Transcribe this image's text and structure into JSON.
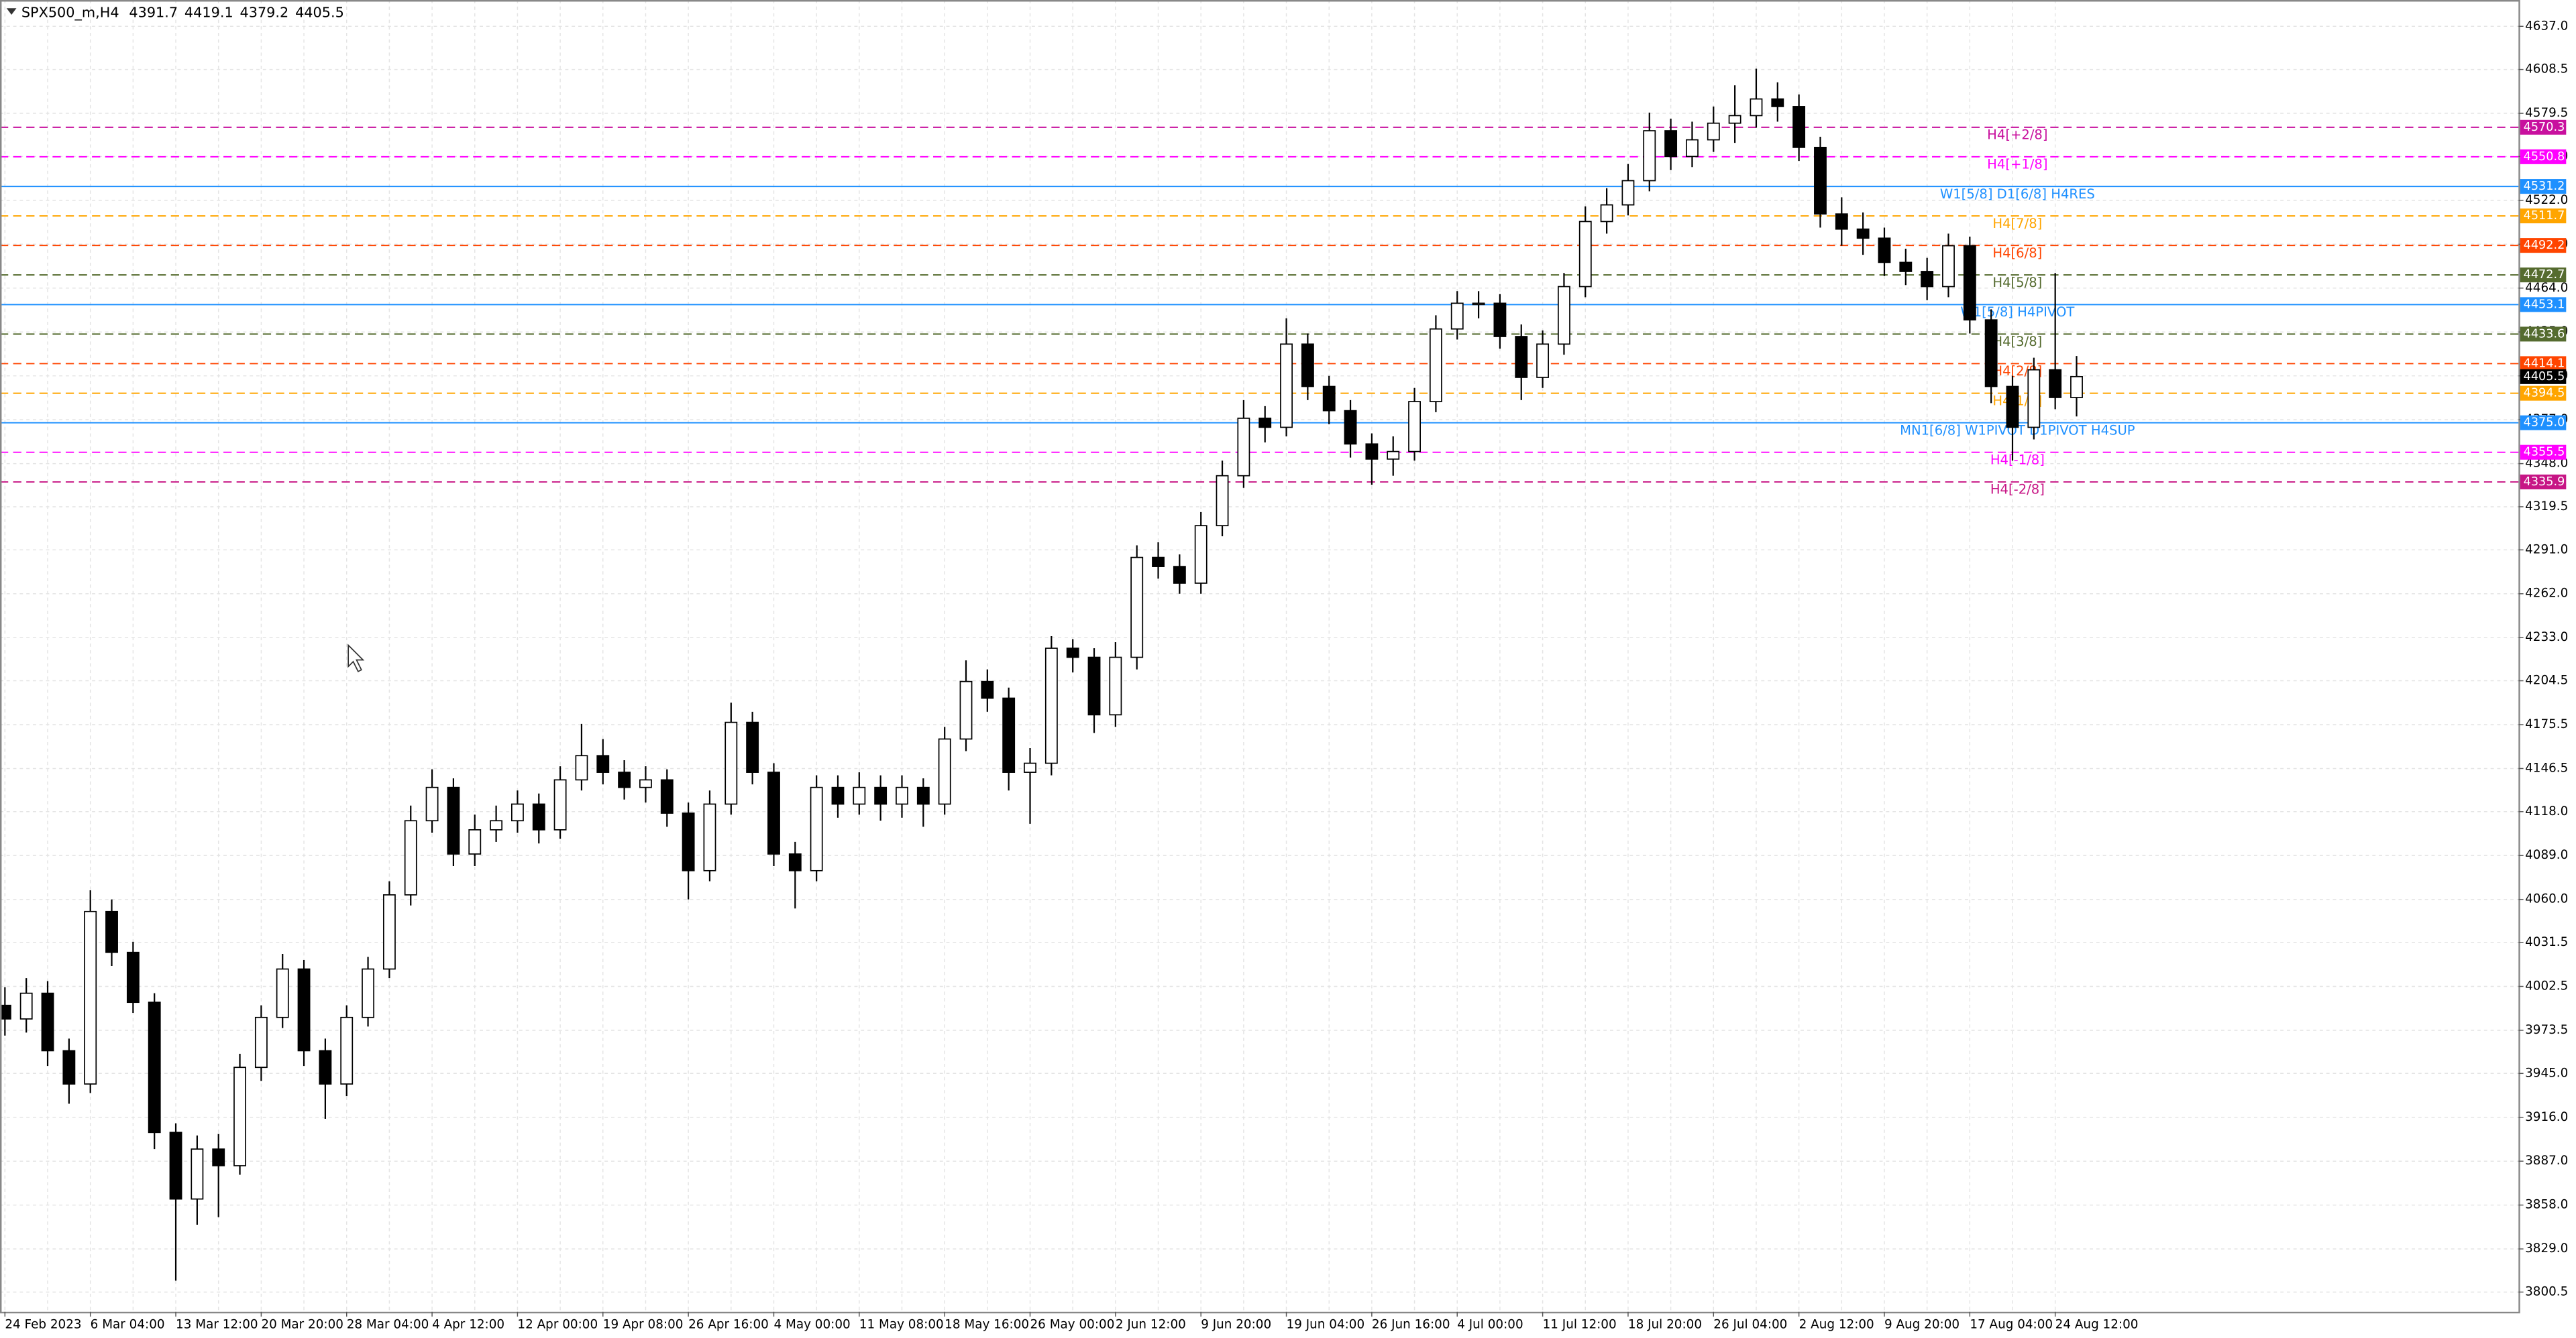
{
  "chart_data": {
    "type": "candlestick",
    "title": "SPX500_m,H4",
    "categories": [
      "24 Feb 2023",
      null,
      null,
      null,
      "6 Mar 04:00",
      null,
      null,
      null,
      "13 Mar 12:00",
      null,
      null,
      null,
      "20 Mar 20:00",
      null,
      null,
      null,
      "28 Mar 04:00",
      null,
      null,
      null,
      "4 Apr 12:00",
      null,
      null,
      null,
      "12 Apr 00:00",
      null,
      null,
      null,
      "19 Apr 08:00",
      null,
      null,
      null,
      "26 Apr 16:00",
      null,
      null,
      null,
      "4 May 00:00",
      null,
      null,
      null,
      "11 May 08:00",
      null,
      null,
      null,
      "18 May 16:00",
      null,
      null,
      null,
      "26 May 00:00",
      null,
      null,
      null,
      "2 Jun 12:00",
      null,
      null,
      null,
      "9 Jun 20:00",
      null,
      null,
      null,
      "19 Jun 04:00",
      null,
      null,
      null,
      "26 Jun 16:00",
      null,
      null,
      null,
      "4 Jul 00:00",
      null,
      null,
      null,
      "11 Jul 12:00",
      null,
      null,
      null,
      "18 Jul 20:00",
      null,
      null,
      null,
      "26 Jul 04:00",
      null,
      null,
      null,
      "2 Aug 12:00",
      null,
      null,
      null,
      "9 Aug 20:00",
      null,
      null,
      null,
      "17 Aug 04:00",
      null,
      null,
      null,
      "24 Aug 12:00",
      null
    ],
    "open": [
      3990,
      3981,
      3998,
      3960,
      3938,
      4052,
      4025,
      3992,
      3906,
      3862,
      3895,
      3884,
      3949,
      3982,
      4014,
      3960,
      3938,
      3982,
      4014,
      4063,
      4112,
      4134,
      4090,
      4106,
      4112,
      4123,
      4106,
      4139,
      4155,
      4144,
      4134,
      4139,
      4117,
      4079,
      4123,
      4177,
      4144,
      4090,
      4079,
      4134,
      4123,
      4134,
      4123,
      4134,
      4123,
      4166,
      4204,
      4193,
      4144,
      4150,
      4226,
      4220,
      4182,
      4220,
      4286,
      4280,
      4269,
      4307,
      4340,
      4378,
      4372,
      4427,
      4399,
      4383,
      4361,
      4351,
      4356,
      4389,
      4437,
      4454,
      4454,
      4432,
      4405,
      4427,
      4465,
      4508,
      4519,
      4535,
      4568,
      4551,
      4562,
      4573,
      4578,
      4589,
      4584,
      4557,
      4513,
      4503,
      4497,
      4481,
      4475,
      4465,
      4492,
      4443,
      4399,
      4372,
      4410,
      4391.7
    ],
    "high": [
      4002,
      4008,
      4006,
      3968,
      4066,
      4060,
      4032,
      3998,
      3912,
      3904,
      3905,
      3958,
      3990,
      4024,
      4020,
      3968,
      3990,
      4022,
      4072,
      4122,
      4146,
      4140,
      4116,
      4122,
      4132,
      4130,
      4148,
      4176,
      4166,
      4152,
      4148,
      4146,
      4124,
      4132,
      4190,
      4184,
      4150,
      4098,
      4142,
      4142,
      4144,
      4142,
      4142,
      4140,
      4174,
      4218,
      4212,
      4200,
      4160,
      4234,
      4232,
      4226,
      4230,
      4294,
      4296,
      4288,
      4316,
      4350,
      4390,
      4386,
      4444,
      4434,
      4406,
      4390,
      4368,
      4366,
      4398,
      4446,
      4462,
      4462,
      4460,
      4440,
      4436,
      4474,
      4518,
      4530,
      4546,
      4580,
      4576,
      4574,
      4584,
      4598,
      4609,
      4600,
      4592,
      4564,
      4524,
      4514,
      4504,
      4490,
      4484,
      4500,
      4498,
      4450,
      4406,
      4418,
      4474,
      4419.1
    ],
    "low": [
      3970,
      3972,
      3950,
      3925,
      3932,
      4016,
      3985,
      3895,
      3808,
      3845,
      3850,
      3878,
      3940,
      3975,
      3950,
      3915,
      3930,
      3976,
      4008,
      4056,
      4104,
      4082,
      4082,
      4098,
      4104,
      4097,
      4100,
      4132,
      4136,
      4126,
      4124,
      4108,
      4060,
      4072,
      4116,
      4136,
      4082,
      4054,
      4072,
      4114,
      4116,
      4112,
      4114,
      4108,
      4116,
      4158,
      4184,
      4132,
      4110,
      4142,
      4210,
      4170,
      4174,
      4212,
      4272,
      4262,
      4262,
      4300,
      4332,
      4362,
      4366,
      4390,
      4374,
      4352,
      4334,
      4340,
      4350,
      4382,
      4430,
      4444,
      4424,
      4390,
      4398,
      4420,
      4458,
      4500,
      4512,
      4528,
      4542,
      4544,
      4554,
      4560,
      4570,
      4574,
      4548,
      4504,
      4492,
      4486,
      4472,
      4466,
      4456,
      4458,
      4434,
      4388,
      4350,
      4364,
      4384,
      4379.2
    ],
    "close": [
      3981,
      3998,
      3960,
      3938,
      4052,
      4025,
      3992,
      3906,
      3862,
      3895,
      3884,
      3949,
      3982,
      4014,
      3960,
      3938,
      3982,
      4014,
      4063,
      4112,
      4134,
      4090,
      4106,
      4112,
      4123,
      4106,
      4139,
      4155,
      4144,
      4134,
      4139,
      4117,
      4079,
      4123,
      4177,
      4144,
      4090,
      4079,
      4134,
      4123,
      4134,
      4123,
      4134,
      4123,
      4166,
      4204,
      4193,
      4144,
      4150,
      4226,
      4220,
      4182,
      4220,
      4286,
      4280,
      4269,
      4307,
      4340,
      4378,
      4372,
      4427,
      4399,
      4383,
      4361,
      4351,
      4356,
      4389,
      4437,
      4454,
      4454,
      4432,
      4405,
      4427,
      4465,
      4508,
      4519,
      4535,
      4568,
      4551,
      4562,
      4573,
      4578,
      4589,
      4584,
      4557,
      4513,
      4503,
      4497,
      4481,
      4475,
      4465,
      4492,
      4443,
      4399,
      4372,
      4410,
      4391.7,
      4405.5
    ],
    "ylim": [
      3787.5,
      4654.4
    ],
    "yticks": [
      {
        "value": 4637,
        "label": "4637.0"
      },
      {
        "value": 4608.5,
        "label": "4608.5"
      },
      {
        "value": 4579.5,
        "label": "4579.5"
      },
      {
        "value": 4551,
        "label": "4551.0"
      },
      {
        "value": 4522,
        "label": "4522.0"
      },
      {
        "value": 4493,
        "label": "4493.0"
      },
      {
        "value": 4464,
        "label": "4464.0"
      },
      {
        "value": 4435,
        "label": "4435.0"
      },
      {
        "value": 4406,
        "label": "4406.0"
      },
      {
        "value": 4377,
        "label": "4377.0"
      },
      {
        "value": 4348,
        "label": "4348.0"
      },
      {
        "value": 4319.5,
        "label": "4319.5"
      },
      {
        "value": 4291,
        "label": "4291.0"
      },
      {
        "value": 4262,
        "label": "4262.0"
      },
      {
        "value": 4233,
        "label": "4233.0"
      },
      {
        "value": 4204.5,
        "label": "4204.5"
      },
      {
        "value": 4175.5,
        "label": "4175.5"
      },
      {
        "value": 4146.5,
        "label": "4146.5"
      },
      {
        "value": 4118,
        "label": "4118.0"
      },
      {
        "value": 4089,
        "label": "4089.0"
      },
      {
        "value": 4060,
        "label": "4060.0"
      },
      {
        "value": 4031.5,
        "label": "4031.5"
      },
      {
        "value": 4002.5,
        "label": "4002.5"
      },
      {
        "value": 3973.5,
        "label": "3973.5"
      },
      {
        "value": 3945,
        "label": "3945.0"
      },
      {
        "value": 3916,
        "label": "3916.0"
      },
      {
        "value": 3887,
        "label": "3887.0"
      },
      {
        "value": 3858,
        "label": "3858.0"
      },
      {
        "value": 3829,
        "label": "3829.0"
      },
      {
        "value": 3800.5,
        "label": "3800.5"
      }
    ],
    "grid": true,
    "levels": {
      "names": [
        "H4[+2/8]",
        "H4[+1/8]",
        "W1[5/8] D1[6/8] H4RES",
        "H4[7/8]",
        "H4[6/8]",
        "H4[5/8]",
        "W1[5/8] H4PIVOT",
        "H4[3/8]",
        "H4[2/8]",
        "H4[1/8]",
        "MN1[6/8] W1PIVOT D1PIVOT H4SUP",
        "H4[-1/8]",
        "H4[-2/8]"
      ],
      "values": [
        4570.3,
        4550.8,
        4531.2,
        4511.7,
        4492.2,
        4472.7,
        4453.1,
        4433.6,
        4414.1,
        4394.5,
        4375,
        4355.5,
        4335.9
      ],
      "value_labels": [
        "4570.3",
        "4550.8",
        "4531.2",
        "4511.7",
        "4492.2",
        "4472.7",
        "4453.1",
        "4433.6",
        "4414.1",
        "4394.5",
        "4375.0",
        "4355.5",
        "4335.9"
      ],
      "colors": [
        "#c8109e",
        "#ff00ff",
        "#1e90ff",
        "#ffa500",
        "#ff4500",
        "#556b2f",
        "#1e90ff",
        "#556b2f",
        "#ff4500",
        "#ffa500",
        "#1e90ff",
        "#ff00ff",
        "#c71585"
      ],
      "dashed": [
        true,
        true,
        false,
        true,
        true,
        true,
        false,
        true,
        true,
        true,
        false,
        true,
        true
      ]
    },
    "last_price": 4405.5
  }
}
